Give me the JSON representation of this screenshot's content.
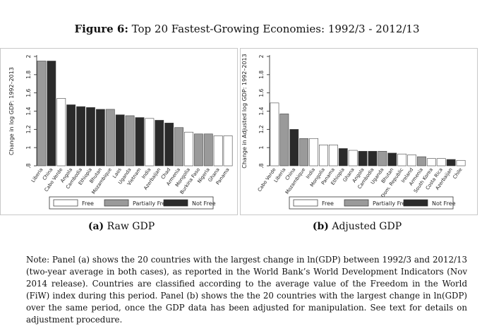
{
  "figure": {
    "label": "Figure 6:",
    "title": "Top 20 Fastest-Growing Economies: 1992/3 - 2012/13"
  },
  "legend": [
    {
      "name": "Free",
      "color": "#ffffff"
    },
    {
      "name": "Partially Free",
      "color": "#9a9a9a"
    },
    {
      "name": "Not Free",
      "color": "#2a2a2a"
    }
  ],
  "chart_data": [
    {
      "type": "bar",
      "panel": "(a)",
      "caption": "Raw GDP",
      "ylabel": "Change in log GDP: 1992–2013",
      "ylim": [
        0.8,
        2.0
      ],
      "yticks": [
        "2",
        "1.8",
        "1.6",
        "1.4",
        "1.2",
        "1",
        ".8"
      ],
      "ytick_values": [
        2.0,
        1.8,
        1.6,
        1.4,
        1.2,
        1.0,
        0.8
      ],
      "categories": [
        "Liberia",
        "China",
        "Cabo Verde",
        "Angola",
        "Cambodia",
        "Ethiopia",
        "Bhutan",
        "Mozambique",
        "Laos",
        "Uganda",
        "Vietnam",
        "India",
        "Azerbaijan",
        "Chad",
        "Armenia",
        "Mongolia",
        "Burkina Faso",
        "Nigeria",
        "Ghana",
        "Panama"
      ],
      "values": [
        1.95,
        1.95,
        1.54,
        1.47,
        1.45,
        1.44,
        1.42,
        1.42,
        1.36,
        1.35,
        1.33,
        1.32,
        1.3,
        1.27,
        1.22,
        1.17,
        1.15,
        1.15,
        1.13,
        1.13
      ],
      "status": [
        "Partially Free",
        "Not Free",
        "Free",
        "Not Free",
        "Not Free",
        "Not Free",
        "Not Free",
        "Partially Free",
        "Not Free",
        "Partially Free",
        "Not Free",
        "Free",
        "Not Free",
        "Not Free",
        "Partially Free",
        "Free",
        "Partially Free",
        "Partially Free",
        "Free",
        "Free"
      ]
    },
    {
      "type": "bar",
      "panel": "(b)",
      "caption": "Adjusted GDP",
      "ylabel": "Change in Adjusted log GDP: 1992–2013",
      "ylim": [
        0.8,
        2.0
      ],
      "yticks": [
        "2",
        "1.8",
        "1.6",
        "1.4",
        "1.2",
        "1",
        ".8"
      ],
      "ytick_values": [
        2.0,
        1.8,
        1.6,
        1.4,
        1.2,
        1.0,
        0.8
      ],
      "categories": [
        "Cabo Verde",
        "Liberia",
        "China",
        "Mozambique",
        "India",
        "Mongolia",
        "Panama",
        "Ethiopia",
        "Ghana",
        "Angola",
        "Cambodia",
        "Uganda",
        "Bhutan",
        "Dom. Republic",
        "Ireland",
        "Armenia",
        "South Korea",
        "Costa Rica",
        "Azerbaijan",
        "Chile"
      ],
      "values": [
        1.49,
        1.37,
        1.2,
        1.1,
        1.1,
        1.03,
        1.03,
        0.99,
        0.97,
        0.96,
        0.96,
        0.96,
        0.94,
        0.93,
        0.92,
        0.9,
        0.88,
        0.88,
        0.87,
        0.86
      ],
      "status": [
        "Free",
        "Partially Free",
        "Not Free",
        "Partially Free",
        "Free",
        "Free",
        "Free",
        "Not Free",
        "Free",
        "Not Free",
        "Not Free",
        "Partially Free",
        "Not Free",
        "Free",
        "Free",
        "Partially Free",
        "Free",
        "Free",
        "Not Free",
        "Free"
      ]
    }
  ],
  "captions": {
    "a_label": "(a)",
    "a_text": "Raw GDP",
    "b_label": "(b)",
    "b_text": "Adjusted GDP"
  },
  "note": "Note: Panel (a) shows the 20 countries with the largest change in ln(GDP) between 1992/3 and 2012/13 (two-year average in both cases), as reported in the World Bank’s World Development Indicators (Nov 2014 release). Countries are classified according to the average value of the Freedom in the World (FiW) index during this period. Panel (b) shows the the 20 countries with the largest change in ln(GDP) over the same period, once the GDP data has been adjusted for manipulation. See text for details on adjustment procedure."
}
